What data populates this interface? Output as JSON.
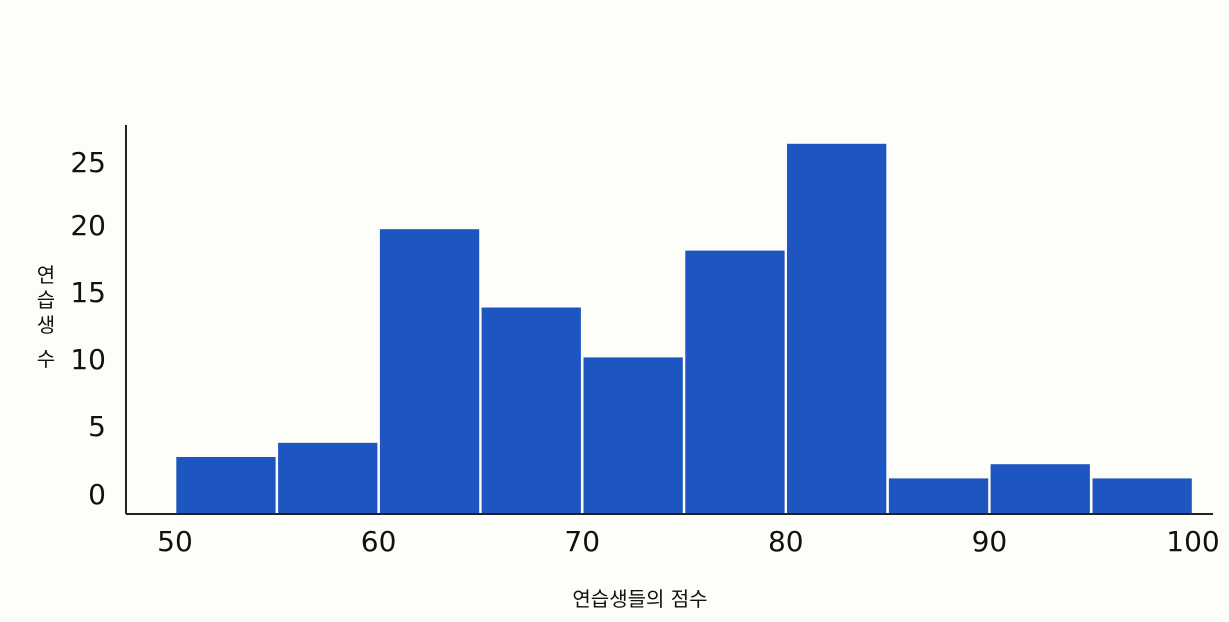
{
  "chart_data": {
    "type": "bar",
    "title": "",
    "xlabel": "연습생들의 점수",
    "ylabel": "연습생 수",
    "xlim": [
      50,
      100
    ],
    "ylim": [
      0,
      25
    ],
    "x_ticks": [
      "50",
      "60",
      "70",
      "80",
      "90",
      "100"
    ],
    "y_ticks": [
      "0",
      "5",
      "10",
      "15",
      "20",
      "25"
    ],
    "bins": [
      {
        "start": 50,
        "end": 55,
        "value": 4
      },
      {
        "start": 55,
        "end": 60,
        "value": 5
      },
      {
        "start": 60,
        "end": 65,
        "value": 20
      },
      {
        "start": 65,
        "end": 70,
        "value": 14.5
      },
      {
        "start": 70,
        "end": 75,
        "value": 11
      },
      {
        "start": 75,
        "end": 80,
        "value": 18.5
      },
      {
        "start": 80,
        "end": 85,
        "value": 26
      },
      {
        "start": 85,
        "end": 90,
        "value": 2.5
      },
      {
        "start": 90,
        "end": 95,
        "value": 3.5
      },
      {
        "start": 95,
        "end": 100,
        "value": 2.5
      }
    ],
    "grid": false,
    "bar_color": "#1d56c0",
    "axis_color": "#222222"
  }
}
